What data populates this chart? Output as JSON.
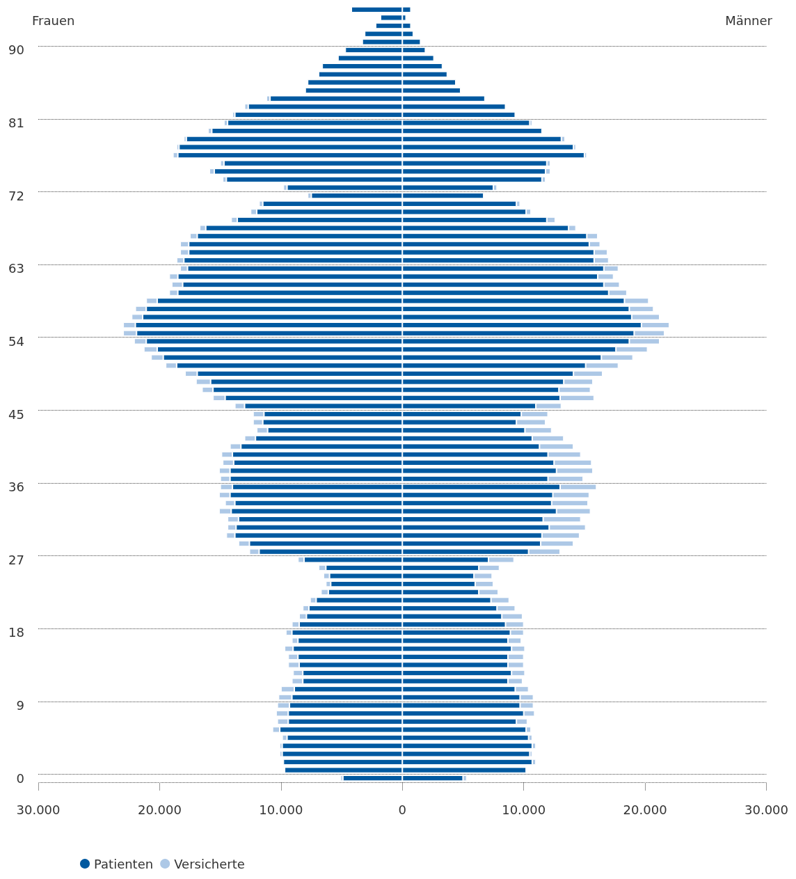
{
  "chart_data": {
    "type": "bar",
    "orientation": "horizontal",
    "annotations": [
      "Frauen",
      "Männer"
    ],
    "categories": [
      null,
      null,
      null,
      null,
      null,
      "90",
      null,
      null,
      null,
      null,
      null,
      null,
      null,
      null,
      "81",
      null,
      null,
      null,
      null,
      null,
      null,
      null,
      null,
      "72",
      null,
      null,
      null,
      null,
      null,
      null,
      null,
      null,
      "63",
      null,
      null,
      null,
      null,
      null,
      null,
      null,
      null,
      "54",
      null,
      null,
      null,
      null,
      null,
      null,
      null,
      null,
      "45",
      null,
      null,
      null,
      null,
      null,
      null,
      null,
      null,
      "36",
      null,
      null,
      null,
      null,
      null,
      null,
      null,
      null,
      "27",
      null,
      null,
      null,
      null,
      null,
      null,
      null,
      null,
      "18",
      null,
      null,
      null,
      null,
      null,
      null,
      null,
      null,
      "9",
      null,
      null,
      null,
      null,
      null,
      null,
      null,
      null,
      "0"
    ],
    "series": [
      {
        "name": "Patienten",
        "color": "#0059a0",
        "values": [
          -4200,
          -1800,
          -2200,
          -3100,
          -3300,
          -4700,
          -5300,
          -6600,
          -6900,
          -7800,
          -8000,
          -10900,
          -12700,
          -13800,
          -14400,
          -15700,
          -17800,
          -18400,
          -18500,
          -14700,
          -15500,
          -14500,
          -9500,
          -7500,
          -11500,
          -12000,
          -13600,
          -16200,
          -16900,
          -17600,
          -17600,
          -18000,
          -17700,
          -18500,
          -18100,
          -18500,
          -20200,
          -21100,
          -21400,
          -22000,
          -21900,
          -21100,
          -20200,
          -19700,
          -18600,
          -16900,
          -15800,
          -15600,
          -14600,
          -13000,
          -11400,
          -11500,
          -11100,
          -12100,
          -13300,
          -14000,
          -13900,
          -14200,
          -14200,
          -14000,
          -14200,
          -13800,
          -14100,
          -13500,
          -13700,
          -13800,
          -12600,
          -11800,
          -8100,
          -6300,
          -6000,
          -5900,
          -6100,
          -7100,
          -7700,
          -7900,
          -8500,
          -9100,
          -8600,
          -9000,
          -8600,
          -8500,
          -8200,
          -8200,
          -8900,
          -9100,
          -9300,
          -9400,
          -9400,
          -10100,
          -9500,
          -9900,
          -9900,
          -9800,
          -9700,
          -4900
        ]
      },
      {
        "color": "#0059a0",
        "values": [
          700,
          300,
          700,
          900,
          1500,
          1900,
          2600,
          3300,
          3700,
          4400,
          4800,
          6800,
          8500,
          9300,
          10500,
          11500,
          13100,
          14100,
          15000,
          11900,
          11800,
          11500,
          7500,
          6700,
          9400,
          10200,
          11900,
          13700,
          15200,
          15400,
          15800,
          15800,
          16600,
          16100,
          16600,
          17000,
          18300,
          18700,
          18900,
          19700,
          19100,
          18700,
          17600,
          16400,
          15100,
          14100,
          13300,
          12900,
          13000,
          11000,
          9800,
          9400,
          10100,
          10700,
          11300,
          12000,
          12500,
          12700,
          12000,
          13000,
          12400,
          12300,
          12700,
          11600,
          12100,
          11500,
          11400,
          10400,
          7100,
          6300,
          5900,
          6000,
          6300,
          7300,
          7800,
          8200,
          8500,
          8900,
          8700,
          9000,
          8700,
          8700,
          9000,
          8700,
          9300,
          9700,
          9700,
          10000,
          9400,
          10200,
          10400,
          10700,
          10500,
          10700,
          10200,
          5000
        ]
      },
      {
        "name": "Versicherte",
        "color": "#adc8e6",
        "values": [
          null,
          null,
          null,
          null,
          null,
          null,
          null,
          null,
          null,
          null,
          null,
          -300,
          -300,
          -200,
          -300,
          -300,
          -200,
          -200,
          -400,
          -300,
          -400,
          -300,
          -300,
          -300,
          -300,
          -500,
          -500,
          -500,
          -600,
          -700,
          -700,
          -600,
          -600,
          -700,
          -900,
          -700,
          -900,
          -900,
          -900,
          -1000,
          -1100,
          -1000,
          -1100,
          -1000,
          -900,
          -1000,
          -1200,
          -900,
          -1000,
          -800,
          -900,
          -800,
          -900,
          -900,
          -900,
          -900,
          -900,
          -900,
          -800,
          -1000,
          -900,
          -800,
          -1000,
          -900,
          -700,
          -700,
          -900,
          -800,
          -500,
          -600,
          -500,
          -400,
          -600,
          -500,
          -500,
          -600,
          -600,
          -500,
          -500,
          -700,
          -800,
          -900,
          -800,
          -900,
          -1100,
          -1100,
          -1000,
          -1000,
          -900,
          -600,
          -400,
          -200,
          -200,
          null,
          null,
          -200
        ]
      },
      {
        "color": "#adc8e6",
        "values": [
          null,
          null,
          null,
          null,
          null,
          null,
          null,
          null,
          null,
          null,
          null,
          null,
          null,
          null,
          200,
          null,
          300,
          200,
          200,
          300,
          400,
          300,
          300,
          null,
          300,
          400,
          700,
          600,
          900,
          900,
          1100,
          1200,
          1200,
          1300,
          1300,
          1500,
          2000,
          2000,
          2300,
          2300,
          2500,
          2500,
          2600,
          2600,
          2700,
          2400,
          2400,
          2600,
          2800,
          2100,
          2200,
          2400,
          2200,
          2600,
          2800,
          2700,
          3100,
          3000,
          2900,
          3000,
          3000,
          3000,
          2800,
          3100,
          3000,
          3100,
          2700,
          2600,
          2100,
          1700,
          1500,
          1500,
          1600,
          1500,
          1500,
          1700,
          1500,
          1100,
          1100,
          1100,
          1300,
          1300,
          1100,
          1200,
          1100,
          1100,
          1100,
          900,
          900,
          400,
          300,
          300,
          200,
          300,
          null,
          300
        ]
      }
    ],
    "stacked": true,
    "xlim": [
      -30000,
      30000
    ],
    "xticks": [
      {
        "value": -30000,
        "label": "30.000"
      },
      {
        "value": -20000,
        "label": "20.000"
      },
      {
        "value": -10000,
        "label": "10.000"
      },
      0,
      {
        "value": 10000,
        "label": "10.000"
      },
      {
        "value": 20000,
        "label": "20.000"
      },
      {
        "value": 30000,
        "label": "30.000"
      }
    ],
    "grid": "y",
    "legend": "bottom left"
  }
}
